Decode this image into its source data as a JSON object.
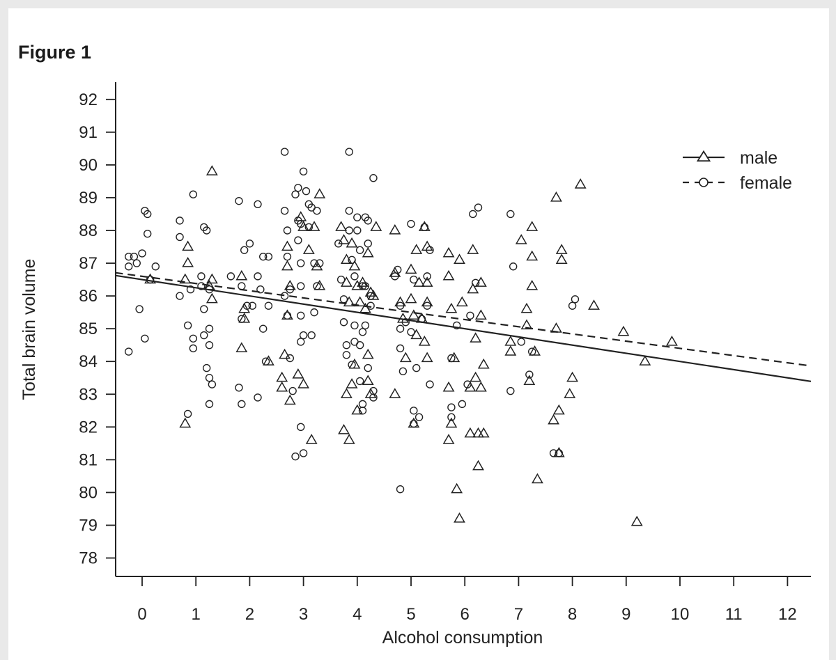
{
  "figure": {
    "label": "Figure 1"
  },
  "chart_data": {
    "type": "scatter",
    "xlabel": "Alcohol consumption",
    "ylabel": "Total brain volume",
    "xlim": [
      -0.5,
      12.5
    ],
    "ylim": [
      77.5,
      92.5
    ],
    "xticks": [
      0,
      1,
      2,
      3,
      4,
      5,
      6,
      7,
      8,
      9,
      10,
      11,
      12
    ],
    "yticks": [
      78,
      79,
      80,
      81,
      82,
      83,
      84,
      85,
      86,
      87,
      88,
      89,
      90,
      91,
      92
    ],
    "colors": {
      "ink": "#222222"
    },
    "legend": {
      "position": "top-right",
      "entries": [
        "male",
        "female"
      ]
    },
    "series": [
      {
        "name": "male",
        "marker": "triangle",
        "trendline": {
          "style": "solid",
          "intercept": 86.5,
          "slope": -0.25
        },
        "points": [
          [
            0.15,
            86.5
          ],
          [
            0.8,
            86.5
          ],
          [
            0.85,
            87.5
          ],
          [
            0.85,
            87.0
          ],
          [
            0.8,
            82.1
          ],
          [
            1.3,
            89.8
          ],
          [
            1.3,
            86.5
          ],
          [
            1.3,
            85.9
          ],
          [
            1.25,
            86.3
          ],
          [
            1.85,
            86.6
          ],
          [
            1.9,
            85.6
          ],
          [
            1.9,
            85.3
          ],
          [
            1.85,
            84.4
          ],
          [
            2.35,
            84.0
          ],
          [
            2.65,
            84.2
          ],
          [
            2.6,
            83.5
          ],
          [
            2.6,
            83.2
          ],
          [
            2.75,
            82.8
          ],
          [
            2.7,
            87.5
          ],
          [
            2.7,
            86.9
          ],
          [
            2.75,
            86.3
          ],
          [
            2.7,
            85.4
          ],
          [
            2.95,
            88.4
          ],
          [
            3.0,
            88.1
          ],
          [
            3.1,
            87.4
          ],
          [
            2.9,
            83.6
          ],
          [
            3.0,
            83.3
          ],
          [
            3.15,
            81.6
          ],
          [
            3.2,
            88.1
          ],
          [
            3.25,
            86.9
          ],
          [
            3.3,
            86.3
          ],
          [
            3.3,
            89.1
          ],
          [
            3.7,
            88.1
          ],
          [
            3.75,
            87.7
          ],
          [
            3.8,
            87.1
          ],
          [
            3.8,
            86.4
          ],
          [
            3.85,
            85.8
          ],
          [
            3.8,
            83.0
          ],
          [
            3.75,
            81.9
          ],
          [
            3.85,
            81.6
          ],
          [
            3.9,
            87.6
          ],
          [
            3.95,
            86.9
          ],
          [
            4.0,
            86.3
          ],
          [
            4.05,
            85.8
          ],
          [
            3.9,
            83.3
          ],
          [
            3.95,
            83.9
          ],
          [
            4.0,
            82.5
          ],
          [
            4.1,
            86.4
          ],
          [
            4.15,
            85.6
          ],
          [
            4.2,
            84.2
          ],
          [
            4.2,
            83.4
          ],
          [
            4.25,
            83.0
          ],
          [
            4.2,
            87.3
          ],
          [
            4.25,
            86.1
          ],
          [
            4.3,
            86.0
          ],
          [
            4.35,
            88.1
          ],
          [
            4.7,
            88.0
          ],
          [
            4.7,
            86.7
          ],
          [
            4.8,
            85.8
          ],
          [
            4.7,
            83.0
          ],
          [
            4.85,
            85.3
          ],
          [
            4.9,
            84.1
          ],
          [
            5.0,
            86.8
          ],
          [
            5.0,
            85.9
          ],
          [
            5.05,
            85.4
          ],
          [
            5.1,
            84.8
          ],
          [
            5.05,
            82.1
          ],
          [
            5.1,
            87.4
          ],
          [
            5.15,
            86.4
          ],
          [
            5.2,
            85.3
          ],
          [
            5.25,
            84.6
          ],
          [
            5.25,
            88.1
          ],
          [
            5.3,
            87.5
          ],
          [
            5.3,
            86.4
          ],
          [
            5.3,
            85.8
          ],
          [
            5.3,
            84.1
          ],
          [
            5.7,
            87.3
          ],
          [
            5.7,
            86.6
          ],
          [
            5.75,
            85.6
          ],
          [
            5.7,
            83.2
          ],
          [
            5.75,
            82.1
          ],
          [
            5.7,
            81.6
          ],
          [
            5.8,
            84.1
          ],
          [
            5.85,
            80.1
          ],
          [
            5.9,
            79.2
          ],
          [
            5.9,
            87.1
          ],
          [
            5.95,
            85.8
          ],
          [
            6.1,
            83.2
          ],
          [
            6.1,
            81.8
          ],
          [
            6.15,
            87.4
          ],
          [
            6.15,
            86.2
          ],
          [
            6.2,
            84.7
          ],
          [
            6.2,
            83.5
          ],
          [
            6.25,
            81.8
          ],
          [
            6.25,
            80.8
          ],
          [
            6.3,
            86.4
          ],
          [
            6.3,
            85.4
          ],
          [
            6.3,
            83.2
          ],
          [
            6.35,
            81.8
          ],
          [
            6.35,
            83.9
          ],
          [
            6.85,
            84.6
          ],
          [
            6.85,
            84.3
          ],
          [
            7.05,
            87.7
          ],
          [
            7.15,
            85.6
          ],
          [
            7.15,
            85.1
          ],
          [
            7.2,
            83.4
          ],
          [
            7.25,
            88.1
          ],
          [
            7.25,
            87.2
          ],
          [
            7.25,
            86.3
          ],
          [
            7.3,
            84.3
          ],
          [
            7.35,
            80.4
          ],
          [
            7.65,
            82.2
          ],
          [
            7.7,
            89.0
          ],
          [
            7.7,
            85.0
          ],
          [
            7.75,
            82.5
          ],
          [
            7.75,
            81.2
          ],
          [
            7.8,
            87.4
          ],
          [
            7.8,
            87.1
          ],
          [
            7.95,
            83.0
          ],
          [
            8.0,
            83.5
          ],
          [
            8.15,
            89.4
          ],
          [
            8.4,
            85.7
          ],
          [
            8.95,
            84.9
          ],
          [
            9.2,
            79.1
          ],
          [
            9.35,
            84.0
          ],
          [
            9.85,
            84.6
          ]
        ]
      },
      {
        "name": "female",
        "marker": "circle",
        "trendline": {
          "style": "dashed",
          "intercept": 86.6,
          "slope": -0.22
        },
        "points": [
          [
            -0.25,
            87.2
          ],
          [
            -0.25,
            86.9
          ],
          [
            -0.15,
            87.2
          ],
          [
            -0.1,
            87.0
          ],
          [
            0.0,
            87.3
          ],
          [
            0.05,
            88.6
          ],
          [
            0.1,
            88.5
          ],
          [
            0.1,
            87.9
          ],
          [
            0.25,
            86.9
          ],
          [
            0.15,
            86.5
          ],
          [
            -0.05,
            85.6
          ],
          [
            0.05,
            84.7
          ],
          [
            -0.25,
            84.3
          ],
          [
            0.7,
            88.3
          ],
          [
            0.7,
            87.8
          ],
          [
            0.7,
            86.0
          ],
          [
            0.85,
            85.1
          ],
          [
            0.85,
            82.4
          ],
          [
            0.9,
            86.2
          ],
          [
            0.95,
            84.4
          ],
          [
            0.95,
            84.7
          ],
          [
            1.1,
            86.6
          ],
          [
            1.15,
            88.1
          ],
          [
            1.2,
            88.0
          ],
          [
            1.1,
            86.3
          ],
          [
            1.15,
            85.6
          ],
          [
            1.15,
            84.8
          ],
          [
            1.25,
            86.2
          ],
          [
            1.25,
            85.0
          ],
          [
            1.25,
            84.5
          ],
          [
            1.2,
            83.8
          ],
          [
            1.25,
            83.5
          ],
          [
            1.3,
            83.3
          ],
          [
            1.25,
            82.7
          ],
          [
            0.95,
            89.1
          ],
          [
            1.65,
            86.6
          ],
          [
            1.85,
            86.3
          ],
          [
            1.8,
            83.2
          ],
          [
            1.85,
            82.7
          ],
          [
            1.8,
            88.9
          ],
          [
            1.9,
            87.4
          ],
          [
            2.0,
            87.6
          ],
          [
            1.95,
            85.7
          ],
          [
            1.85,
            85.3
          ],
          [
            2.15,
            88.8
          ],
          [
            2.15,
            86.6
          ],
          [
            2.2,
            86.2
          ],
          [
            2.25,
            87.2
          ],
          [
            2.25,
            85.0
          ],
          [
            2.3,
            84.0
          ],
          [
            2.35,
            85.7
          ],
          [
            2.35,
            87.2
          ],
          [
            2.15,
            82.9
          ],
          [
            2.05,
            85.7
          ],
          [
            2.65,
            90.4
          ],
          [
            2.65,
            88.6
          ],
          [
            2.7,
            88.0
          ],
          [
            2.7,
            87.2
          ],
          [
            2.75,
            86.2
          ],
          [
            2.65,
            86.0
          ],
          [
            2.7,
            85.4
          ],
          [
            2.75,
            84.1
          ],
          [
            2.8,
            83.1
          ],
          [
            2.85,
            81.1
          ],
          [
            2.9,
            89.3
          ],
          [
            2.85,
            89.1
          ],
          [
            2.9,
            88.3
          ],
          [
            2.95,
            88.2
          ],
          [
            2.9,
            87.7
          ],
          [
            2.95,
            87.0
          ],
          [
            2.95,
            86.3
          ],
          [
            2.95,
            85.4
          ],
          [
            3.0,
            84.8
          ],
          [
            2.95,
            84.6
          ],
          [
            2.95,
            82.0
          ],
          [
            3.0,
            81.2
          ],
          [
            3.0,
            89.8
          ],
          [
            3.05,
            89.2
          ],
          [
            3.1,
            88.8
          ],
          [
            3.15,
            88.7
          ],
          [
            3.1,
            88.1
          ],
          [
            3.2,
            87.0
          ],
          [
            3.25,
            86.3
          ],
          [
            3.2,
            85.5
          ],
          [
            3.15,
            84.8
          ],
          [
            3.3,
            87.0
          ],
          [
            3.25,
            88.6
          ],
          [
            3.65,
            87.6
          ],
          [
            3.7,
            86.5
          ],
          [
            3.75,
            85.9
          ],
          [
            3.75,
            85.2
          ],
          [
            3.8,
            84.5
          ],
          [
            3.8,
            84.2
          ],
          [
            3.85,
            88.6
          ],
          [
            3.85,
            90.4
          ],
          [
            3.85,
            88.0
          ],
          [
            3.9,
            87.1
          ],
          [
            3.95,
            86.6
          ],
          [
            3.95,
            85.1
          ],
          [
            3.95,
            84.6
          ],
          [
            3.9,
            83.9
          ],
          [
            4.0,
            88.4
          ],
          [
            4.0,
            88.0
          ],
          [
            4.05,
            87.4
          ],
          [
            4.1,
            86.3
          ],
          [
            4.1,
            84.9
          ],
          [
            4.05,
            84.5
          ],
          [
            4.05,
            83.4
          ],
          [
            4.1,
            82.7
          ],
          [
            4.1,
            82.5
          ],
          [
            4.15,
            88.4
          ],
          [
            4.2,
            88.3
          ],
          [
            4.2,
            87.6
          ],
          [
            4.15,
            86.3
          ],
          [
            4.25,
            85.7
          ],
          [
            4.15,
            85.1
          ],
          [
            4.2,
            83.8
          ],
          [
            4.3,
            83.1
          ],
          [
            4.3,
            82.9
          ],
          [
            4.3,
            89.6
          ],
          [
            4.25,
            86.0
          ],
          [
            4.75,
            86.8
          ],
          [
            4.7,
            86.6
          ],
          [
            4.8,
            85.7
          ],
          [
            4.8,
            85.0
          ],
          [
            4.8,
            84.4
          ],
          [
            4.85,
            83.7
          ],
          [
            4.8,
            80.1
          ],
          [
            5.0,
            88.2
          ],
          [
            4.9,
            85.2
          ],
          [
            5.0,
            84.9
          ],
          [
            5.05,
            86.5
          ],
          [
            5.05,
            82.5
          ],
          [
            5.05,
            82.1
          ],
          [
            5.1,
            83.8
          ],
          [
            5.15,
            82.3
          ],
          [
            5.2,
            85.3
          ],
          [
            5.25,
            88.1
          ],
          [
            5.3,
            86.6
          ],
          [
            5.35,
            87.4
          ],
          [
            5.3,
            85.7
          ],
          [
            5.35,
            83.3
          ],
          [
            5.75,
            84.1
          ],
          [
            5.75,
            82.6
          ],
          [
            5.75,
            82.3
          ],
          [
            5.85,
            85.1
          ],
          [
            5.95,
            82.7
          ],
          [
            6.15,
            88.5
          ],
          [
            6.2,
            86.4
          ],
          [
            6.25,
            88.7
          ],
          [
            6.05,
            83.3
          ],
          [
            6.1,
            85.4
          ],
          [
            6.85,
            88.5
          ],
          [
            6.9,
            86.9
          ],
          [
            6.85,
            83.1
          ],
          [
            7.05,
            84.6
          ],
          [
            7.2,
            83.6
          ],
          [
            7.25,
            84.3
          ],
          [
            7.65,
            81.2
          ],
          [
            7.75,
            81.2
          ],
          [
            8.05,
            85.9
          ],
          [
            8.0,
            85.7
          ]
        ]
      }
    ]
  }
}
